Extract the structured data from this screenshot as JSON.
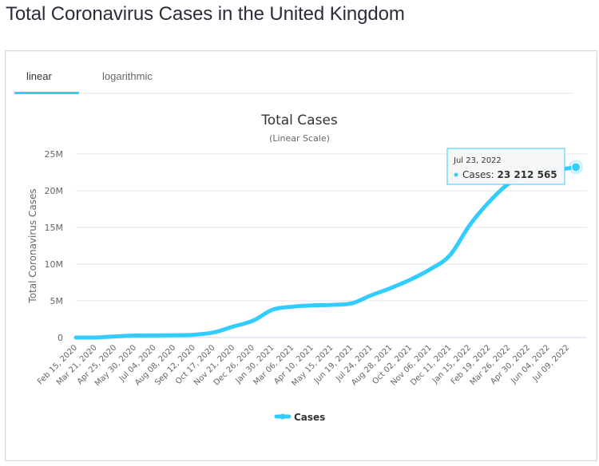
{
  "page": {
    "title": "Total Coronavirus Cases in the United Kingdom"
  },
  "tabs": [
    {
      "label": "linear",
      "active": true
    },
    {
      "label": "logarithmic",
      "active": false
    }
  ],
  "colors": {
    "series": "#33ccff",
    "grid": "#e6e6e6",
    "axis_text": "#666666",
    "title_text": "#333333",
    "tab_indicator": "#33ccff"
  },
  "tooltip": {
    "date": "Jul 23, 2022",
    "series_label": "Cases: ",
    "value": "23 212 565"
  },
  "legend": {
    "label": "Cases"
  },
  "chart_data": {
    "type": "line",
    "title": "Total Cases",
    "subtitle": "(Linear Scale)",
    "xlabel": "",
    "ylabel": "Total Coronavirus Cases",
    "ylim": [
      0,
      25000000
    ],
    "y_ticks": [
      "0",
      "5M",
      "10M",
      "15M",
      "20M",
      "25M"
    ],
    "y_tick_values": [
      0,
      5000000,
      10000000,
      15000000,
      20000000,
      25000000
    ],
    "grid": true,
    "legend_position": "bottom-center",
    "x_tick_labels": [
      "Feb 15, 2020",
      "Mar 21, 2020",
      "Apr 25, 2020",
      "May 30, 2020",
      "Jul 04, 2020",
      "Aug 08, 2020",
      "Sep 12, 2020",
      "Oct 17, 2020",
      "Nov 21, 2020",
      "Dec 26, 2020",
      "Jan 30, 2021",
      "Mar 06, 2021",
      "Apr 10, 2021",
      "May 15, 2021",
      "Jun 19, 2021",
      "Jul 24, 2021",
      "Aug 28, 2021",
      "Oct 02, 2021",
      "Nov 06, 2021",
      "Dec 11, 2021",
      "Jan 15, 2022",
      "Feb 19, 2022",
      "Mar 26, 2022",
      "Apr 30, 2022",
      "Jun 04, 2022",
      "Jul 09, 2022"
    ],
    "series": [
      {
        "name": "Cases",
        "x": [
          "Feb 15, 2020",
          "Mar 21, 2020",
          "Apr 25, 2020",
          "May 30, 2020",
          "Jul 04, 2020",
          "Aug 08, 2020",
          "Sep 12, 2020",
          "Oct 17, 2020",
          "Nov 21, 2020",
          "Dec 26, 2020",
          "Jan 30, 2021",
          "Mar 06, 2021",
          "Apr 10, 2021",
          "May 15, 2021",
          "Jun 19, 2021",
          "Jul 24, 2021",
          "Aug 28, 2021",
          "Oct 02, 2021",
          "Nov 06, 2021",
          "Dec 11, 2021",
          "Jan 15, 2022",
          "Feb 19, 2022",
          "Mar 26, 2022",
          "Apr 30, 2022",
          "Jun 04, 2022",
          "Jul 09, 2022",
          "Jul 23, 2022"
        ],
        "values": [
          0,
          5000,
          150000,
          270000,
          285000,
          315000,
          380000,
          700000,
          1500000,
          2300000,
          3800000,
          4200000,
          4380000,
          4450000,
          4650000,
          5750000,
          6750000,
          7900000,
          9300000,
          11200000,
          15300000,
          18500000,
          21000000,
          22200000,
          22700000,
          23050000,
          23212565
        ]
      }
    ]
  }
}
